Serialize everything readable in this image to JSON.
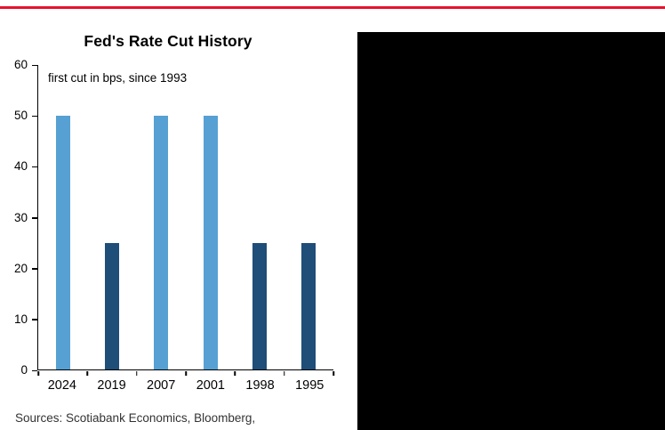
{
  "colors": {
    "accent_rule": "#E8112D",
    "panel": "#000000",
    "axis": "#000000",
    "bar_light": "#56A0D3",
    "bar_dark": "#1F4E79"
  },
  "chart_data": {
    "type": "bar",
    "title": "Fed's Rate Cut History",
    "subtitle": "first cut in bps, since 1993",
    "categories": [
      "2024",
      "2019",
      "2007",
      "2001",
      "1998",
      "1995"
    ],
    "values": [
      50,
      25,
      50,
      50,
      25,
      25
    ],
    "bar_colors": [
      "#56A0D3",
      "#1F4E79",
      "#56A0D3",
      "#56A0D3",
      "#1F4E79",
      "#1F4E79"
    ],
    "unit": "bps",
    "xlabel": "",
    "ylabel": "",
    "ylim": [
      0,
      60
    ],
    "yticks": [
      0,
      10,
      20,
      30,
      40,
      50,
      60
    ],
    "grid": false,
    "legend": "none"
  },
  "footer": {
    "sources": "Sources: Scotiabank Economics, Bloomberg,"
  }
}
